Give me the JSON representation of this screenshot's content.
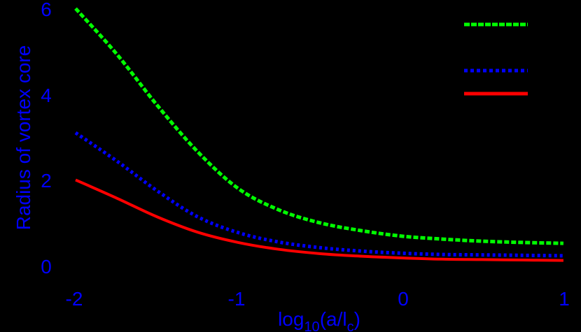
{
  "chart_data": {
    "type": "line",
    "title": "",
    "xlabel": "log10(a/lc)",
    "xlabel_parts": {
      "base": "log",
      "sub1": "10",
      "mid": "(a/l",
      "sub2": "c",
      "end": ")"
    },
    "ylabel": "Radius of vortex core",
    "xlim": [
      -2,
      1
    ],
    "ylim": [
      0,
      6
    ],
    "xticks": [
      -2,
      -1,
      0,
      1
    ],
    "xtick_labels": [
      "-2",
      "-1",
      "0",
      "1"
    ],
    "yticks": [
      0,
      2,
      4,
      6
    ],
    "ytick_labels": [
      "0",
      "2",
      "4",
      "6"
    ],
    "grid": false,
    "legend_position": "upper right",
    "background": "#000000",
    "text_color": "#0000ff",
    "x": [
      -2,
      -1.75,
      -1.5,
      -1.25,
      -1,
      -0.75,
      -0.5,
      -0.25,
      0,
      0.25,
      0.5,
      0.75,
      1
    ],
    "series": [
      {
        "name": "",
        "color": "#00ff00",
        "style": "dashed",
        "values": [
          6.0,
          4.95,
          3.75,
          2.66,
          1.8,
          1.3,
          1.0,
          0.82,
          0.69,
          0.62,
          0.57,
          0.54,
          0.52
        ]
      },
      {
        "name": "",
        "color": "#0000ff",
        "style": "dotted",
        "values": [
          3.1,
          2.45,
          1.75,
          1.14,
          0.77,
          0.55,
          0.42,
          0.34,
          0.29,
          0.26,
          0.25,
          0.24,
          0.23
        ]
      },
      {
        "name": "",
        "color": "#ff0000",
        "style": "solid",
        "values": [
          2.0,
          1.58,
          1.14,
          0.78,
          0.54,
          0.38,
          0.28,
          0.22,
          0.18,
          0.15,
          0.14,
          0.13,
          0.12
        ]
      }
    ]
  }
}
